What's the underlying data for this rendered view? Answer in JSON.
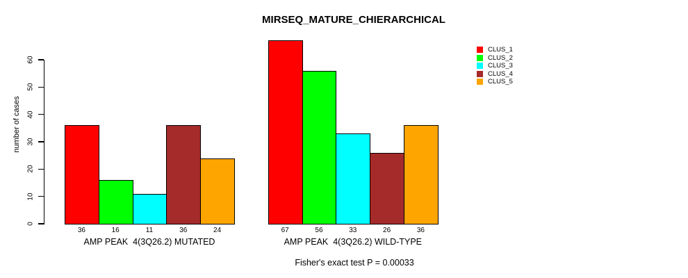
{
  "chart_data": {
    "type": "bar",
    "title": "MIRSEQ_MATURE_CHIERARCHICAL",
    "ylabel": "number of cases",
    "xlabel": "",
    "ylim": [
      0,
      60
    ],
    "yticks": [
      0,
      10,
      20,
      30,
      40,
      50,
      60
    ],
    "grid": false,
    "legend_position": "topright",
    "categories": [
      "AMP PEAK  4(3Q26.2) MUTATED",
      "AMP PEAK  4(3Q26.2) WILD-TYPE"
    ],
    "series": [
      {
        "name": "CLUS_1",
        "color": "#ff0000",
        "values": [
          36,
          67
        ]
      },
      {
        "name": "CLUS_2",
        "color": "#00ff00",
        "values": [
          16,
          56
        ]
      },
      {
        "name": "CLUS_3",
        "color": "#00ffff",
        "values": [
          11,
          33
        ]
      },
      {
        "name": "CLUS_4",
        "color": "#a52a2a",
        "values": [
          36,
          26
        ]
      },
      {
        "name": "CLUS_5",
        "color": "#ffa500",
        "values": [
          24,
          36
        ]
      }
    ],
    "bar_value_labels": [
      [
        36,
        16,
        11,
        36,
        24
      ],
      [
        67,
        56,
        33,
        26,
        36
      ]
    ],
    "footnote": "Fisher's exact test P = 0.00033"
  }
}
